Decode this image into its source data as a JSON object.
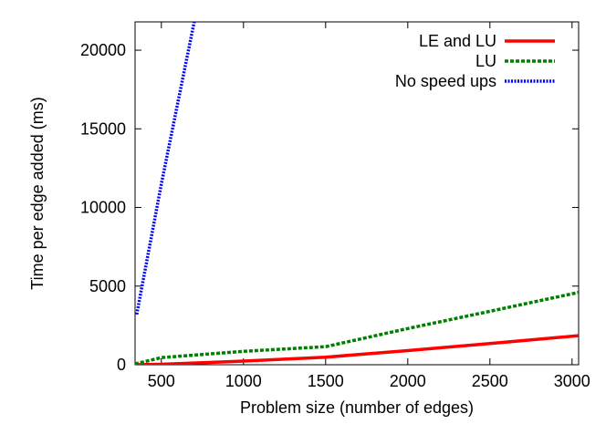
{
  "chart_data": {
    "type": "line",
    "xlabel": "Problem size (number of edges)",
    "ylabel": "Time per edge added (ms)",
    "xlim": [
      340,
      3040
    ],
    "ylim": [
      0,
      21800
    ],
    "x_ticks": [
      500,
      1000,
      1500,
      2000,
      2500,
      3000
    ],
    "y_ticks": [
      0,
      5000,
      10000,
      15000,
      20000
    ],
    "grid": false,
    "legend_position": "top-right",
    "series": [
      {
        "name": "LE and LU",
        "color": "#ff0000",
        "style": "solid",
        "x": [
          340,
          500,
          1000,
          1500,
          2000,
          2500,
          3040
        ],
        "y": [
          0,
          30,
          230,
          480,
          900,
          1350,
          1850
        ]
      },
      {
        "name": "LU",
        "color": "#008000",
        "style": "dashed",
        "x": [
          340,
          500,
          1000,
          1500,
          2000,
          2500,
          3040
        ],
        "y": [
          50,
          450,
          850,
          1150,
          2300,
          3400,
          4600
        ]
      },
      {
        "name": "No speed ups",
        "color": "#0000ff",
        "style": "dotted",
        "x": [
          350,
          500,
          700
        ],
        "y": [
          3200,
          11500,
          21800
        ]
      }
    ]
  }
}
